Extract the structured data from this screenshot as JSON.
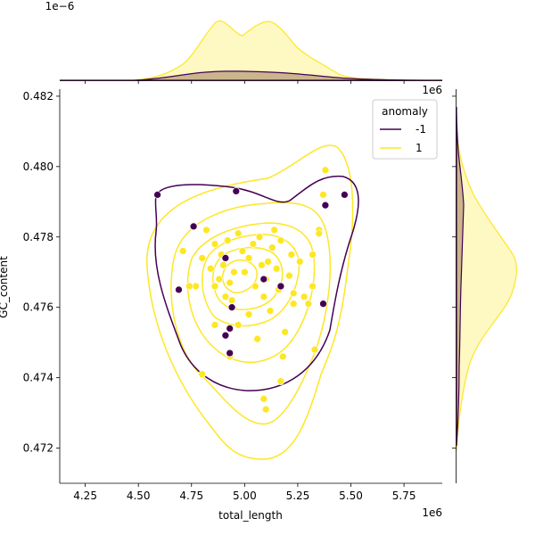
{
  "chart_data": {
    "type": "scatter",
    "kind": "jointplot with kde contours and marginal kde",
    "xlabel": "total_length",
    "ylabel": "GC_content",
    "x_offset_label": "1e6",
    "y_offset_label": "1e6",
    "top_marginal_offset_label": "1e−6",
    "xlim": [
      4.13,
      5.93
    ],
    "ylim": [
      0.471,
      0.4822
    ],
    "x_ticks": [
      4.25,
      4.5,
      4.75,
      5.0,
      5.25,
      5.5,
      5.75
    ],
    "x_tick_labels": [
      "4.25",
      "4.50",
      "4.75",
      "5.00",
      "5.25",
      "5.50",
      "5.75"
    ],
    "y_ticks": [
      0.472,
      0.474,
      0.476,
      0.478,
      0.48,
      0.482
    ],
    "y_tick_labels": [
      "0.472",
      "0.474",
      "0.476",
      "0.478",
      "0.480",
      "0.482"
    ],
    "legend": {
      "title": "anomaly",
      "position": "top-right",
      "entries": [
        {
          "label": "-1",
          "color": "#440154"
        },
        {
          "label": "1",
          "color": "#fde725"
        }
      ]
    },
    "series": [
      {
        "name": "-1",
        "color": "#440154",
        "points": [
          [
            4.59,
            0.4792
          ],
          [
            4.76,
            0.4783
          ],
          [
            4.69,
            0.4765
          ],
          [
            4.91,
            0.4774
          ],
          [
            4.96,
            0.4793
          ],
          [
            5.38,
            0.4789
          ],
          [
            5.47,
            0.4792
          ],
          [
            5.09,
            0.4768
          ],
          [
            5.17,
            0.4766
          ],
          [
            4.94,
            0.476
          ],
          [
            4.91,
            0.4752
          ],
          [
            4.93,
            0.4747
          ],
          [
            4.93,
            0.4754
          ],
          [
            5.37,
            0.4761
          ]
        ]
      },
      {
        "name": "1",
        "color": "#fde725",
        "points": [
          [
            4.77,
            0.4766
          ],
          [
            4.8,
            0.4774
          ],
          [
            4.82,
            0.4782
          ],
          [
            4.84,
            0.4771
          ],
          [
            4.86,
            0.4778
          ],
          [
            4.86,
            0.4766
          ],
          [
            4.88,
            0.4768
          ],
          [
            4.89,
            0.4775
          ],
          [
            4.9,
            0.4772
          ],
          [
            4.91,
            0.4763
          ],
          [
            4.92,
            0.4779
          ],
          [
            4.93,
            0.4767
          ],
          [
            4.94,
            0.4762
          ],
          [
            4.95,
            0.477
          ],
          [
            4.97,
            0.4781
          ],
          [
            4.99,
            0.4776
          ],
          [
            5.0,
            0.477
          ],
          [
            5.02,
            0.4774
          ],
          [
            5.04,
            0.4778
          ],
          [
            5.05,
            0.4766
          ],
          [
            5.07,
            0.478
          ],
          [
            5.08,
            0.4772
          ],
          [
            5.09,
            0.4763
          ],
          [
            5.1,
            0.4768
          ],
          [
            5.11,
            0.4773
          ],
          [
            5.12,
            0.4759
          ],
          [
            5.13,
            0.4777
          ],
          [
            5.14,
            0.4782
          ],
          [
            5.15,
            0.4771
          ],
          [
            5.16,
            0.4765
          ],
          [
            5.17,
            0.4779
          ],
          [
            5.18,
            0.4746
          ],
          [
            5.19,
            0.4753
          ],
          [
            5.21,
            0.4769
          ],
          [
            5.22,
            0.4775
          ],
          [
            5.23,
            0.4764
          ],
          [
            5.26,
            0.4773
          ],
          [
            5.28,
            0.4763
          ],
          [
            5.3,
            0.4761
          ],
          [
            5.32,
            0.4775
          ],
          [
            5.35,
            0.4782
          ],
          [
            5.37,
            0.4792
          ],
          [
            5.38,
            0.4799
          ],
          [
            5.35,
            0.4781
          ],
          [
            5.33,
            0.4748
          ],
          [
            5.17,
            0.4739
          ],
          [
            5.09,
            0.4734
          ],
          [
            5.1,
            0.4731
          ],
          [
            4.8,
            0.4741
          ],
          [
            4.86,
            0.4755
          ],
          [
            4.97,
            0.4755
          ],
          [
            5.02,
            0.4758
          ],
          [
            5.06,
            0.4751
          ],
          [
            4.93,
            0.4746
          ],
          [
            5.23,
            0.4761
          ],
          [
            5.32,
            0.4766
          ],
          [
            4.74,
            0.4766
          ],
          [
            4.71,
            0.4776
          ]
        ]
      }
    ]
  }
}
